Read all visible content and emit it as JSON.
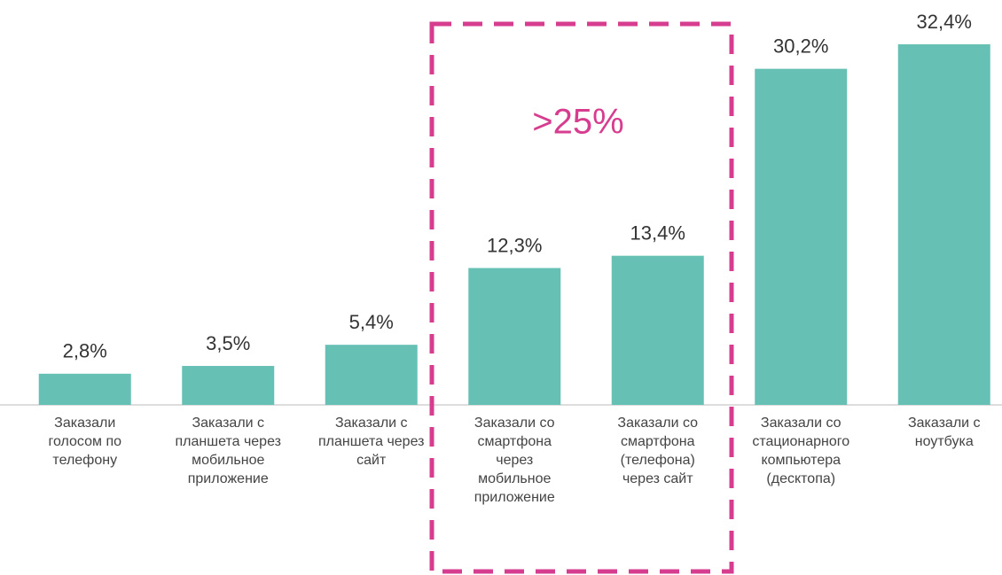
{
  "chart_data": {
    "type": "bar",
    "categories": [
      "Заказали\nголосом по\nтелефону",
      "Заказали с\nпланшета через\nмобильное\nприложение",
      "Заказали с\nпланшета через\nсайт",
      "Заказали со\nсмартфона\nчерез\nмобильное\nприложение",
      "Заказали со\nсмартфона\n(телефона)\nчерез сайт",
      "Заказали со\nстационарного\nкомпьютера\n(десктопа)",
      "Заказали с\nноутбука"
    ],
    "values": [
      2.8,
      3.5,
      5.4,
      12.3,
      13.4,
      30.2,
      32.4
    ],
    "value_labels": [
      "2,8%",
      "3,5%",
      "5,4%",
      "12,3%",
      "13,4%",
      "30,2%",
      "32,4%"
    ],
    "color": "#66c0b4",
    "annotations": [
      ">25%"
    ]
  }
}
